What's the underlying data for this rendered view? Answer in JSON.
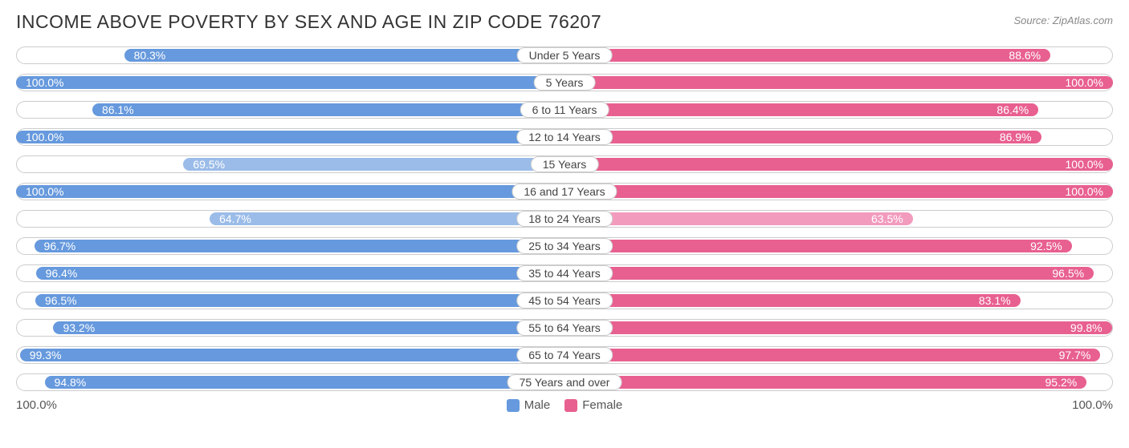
{
  "title": "INCOME ABOVE POVERTY BY SEX AND AGE IN ZIP CODE 76207",
  "source": "Source: ZipAtlas.com",
  "type": "diverging-bar",
  "colors": {
    "male": "#6699dd",
    "male_light": "#9bbce8",
    "female": "#e86090",
    "female_light": "#f29bbd",
    "track_border": "#cccccc",
    "background": "#ffffff",
    "text_on_bar": "#ffffff",
    "title_color": "#333333",
    "label_color": "#444444"
  },
  "axis": {
    "left_label": "100.0%",
    "right_label": "100.0%",
    "max": 100.0
  },
  "legend": {
    "male": "Male",
    "female": "Female"
  },
  "fontsize": {
    "title": 23,
    "value": 14,
    "label": 14,
    "footer": 15
  },
  "rows": [
    {
      "age": "Under 5 Years",
      "male": 80.3,
      "female": 88.6
    },
    {
      "age": "5 Years",
      "male": 100.0,
      "female": 100.0
    },
    {
      "age": "6 to 11 Years",
      "male": 86.1,
      "female": 86.4
    },
    {
      "age": "12 to 14 Years",
      "male": 100.0,
      "female": 86.9
    },
    {
      "age": "15 Years",
      "male": 69.5,
      "female": 100.0
    },
    {
      "age": "16 and 17 Years",
      "male": 100.0,
      "female": 100.0
    },
    {
      "age": "18 to 24 Years",
      "male": 64.7,
      "female": 63.5
    },
    {
      "age": "25 to 34 Years",
      "male": 96.7,
      "female": 92.5
    },
    {
      "age": "35 to 44 Years",
      "male": 96.4,
      "female": 96.5
    },
    {
      "age": "45 to 54 Years",
      "male": 96.5,
      "female": 83.1
    },
    {
      "age": "55 to 64 Years",
      "male": 93.2,
      "female": 99.8
    },
    {
      "age": "65 to 74 Years",
      "male": 99.3,
      "female": 97.7
    },
    {
      "age": "75 Years and over",
      "male": 94.8,
      "female": 95.2
    }
  ]
}
